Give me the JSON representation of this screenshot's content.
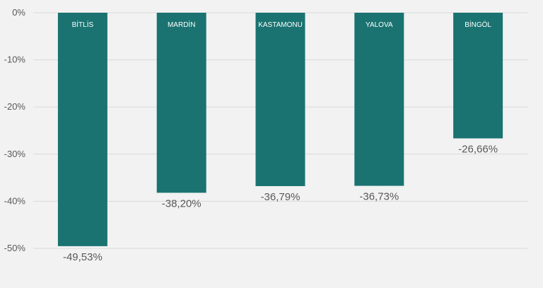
{
  "chart_data": {
    "type": "bar",
    "categories": [
      "BİTLİS",
      "MARDİN",
      "KASTAMONU",
      "YALOVA",
      "BİNGÖL"
    ],
    "values": [
      -49.53,
      -38.2,
      -36.79,
      -36.73,
      -26.66
    ],
    "data_labels": [
      "-49,53%",
      "-38,20%",
      "-36,79%",
      "-36,73%",
      "-26,66%"
    ],
    "y_ticks": [
      0,
      -10,
      -20,
      -30,
      -40,
      -50
    ],
    "y_tick_labels": [
      "0%",
      "-10%",
      "-20%",
      "-30%",
      "-40%",
      "-50%"
    ],
    "ylim": [
      -50,
      0
    ],
    "grid": true,
    "legend": "none",
    "bar_color": "#1a7371",
    "gridline_color": "#d9d9d9",
    "background_color": "#f2f2f2"
  }
}
